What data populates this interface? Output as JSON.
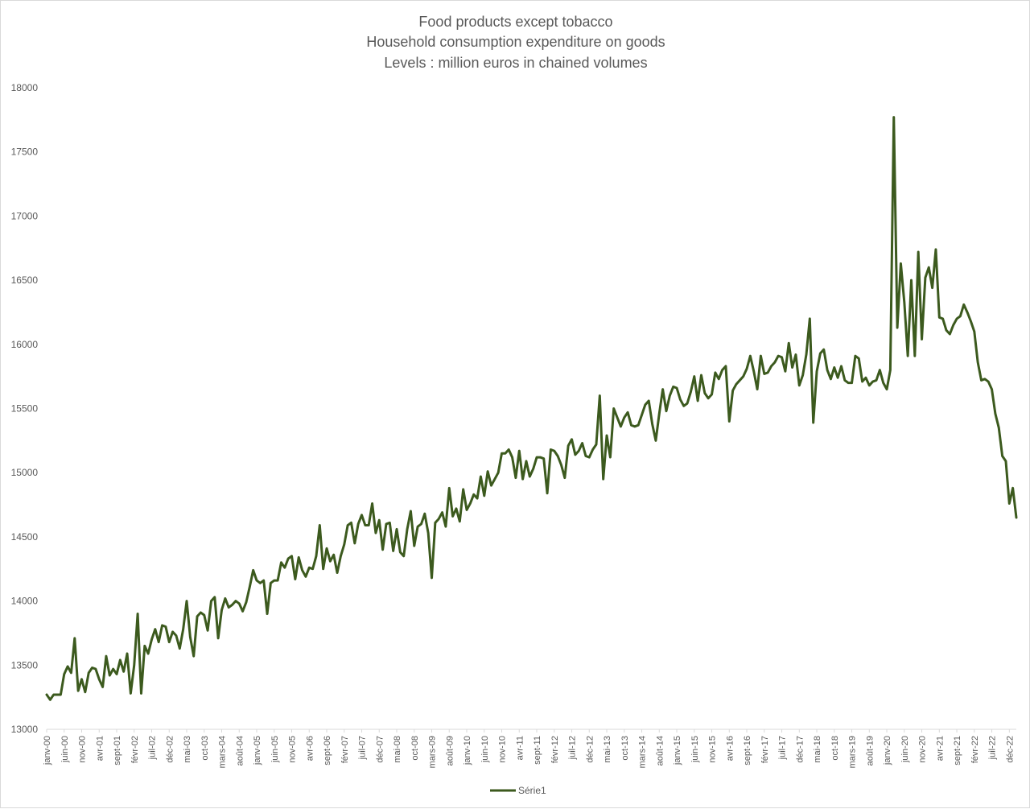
{
  "chart_data": {
    "type": "line",
    "title": [
      "Food products except tobacco",
      "Household consumption expenditure on goods",
      "Levels : million euros in chained volumes"
    ],
    "xlabel": "",
    "ylabel": "",
    "ylim": [
      13000,
      18000
    ],
    "yticks": [
      13000,
      13500,
      14000,
      14500,
      15000,
      15500,
      16000,
      16500,
      17000,
      17500,
      18000
    ],
    "grid": false,
    "legend_position": "bottom",
    "line_color": "#3c5a1e",
    "tick_labels": [
      "janv-00",
      "juin-00",
      "nov-00",
      "avr-01",
      "sept-01",
      "févr-02",
      "juil-02",
      "déc-02",
      "mai-03",
      "oct-03",
      "mars-04",
      "août-04",
      "janv-05",
      "juin-05",
      "nov-05",
      "avr-06",
      "sept-06",
      "févr-07",
      "juil-07",
      "déc-07",
      "mai-08",
      "oct-08",
      "mars-09",
      "août-09",
      "janv-10",
      "juin-10",
      "nov-10",
      "avr-11",
      "sept-11",
      "févr-12",
      "juil-12",
      "déc-12",
      "mai-13",
      "oct-13",
      "mars-14",
      "août-14",
      "janv-15",
      "juin-15",
      "nov-15",
      "avr-16",
      "sept-16",
      "févr-17",
      "juil-17",
      "déc-17",
      "mai-18",
      "oct-18",
      "mars-19",
      "août-19",
      "janv-20",
      "juin-20",
      "nov-20",
      "avr-21",
      "sept-21",
      "févr-22",
      "juil-22",
      "déc-22"
    ],
    "series": [
      {
        "name": "Série1",
        "values": [
          13270,
          13230,
          13270,
          13270,
          13270,
          13430,
          13490,
          13440,
          13710,
          13300,
          13390,
          13290,
          13440,
          13480,
          13470,
          13390,
          13330,
          13570,
          13420,
          13470,
          13430,
          13540,
          13450,
          13590,
          13280,
          13500,
          13900,
          13280,
          13650,
          13590,
          13700,
          13780,
          13680,
          13810,
          13800,
          13680,
          13760,
          13730,
          13630,
          13780,
          14000,
          13720,
          13570,
          13880,
          13910,
          13890,
          13770,
          14000,
          14030,
          13710,
          13930,
          14020,
          13950,
          13970,
          14000,
          13980,
          13920,
          13990,
          14110,
          14240,
          14160,
          14140,
          14160,
          13900,
          14140,
          14160,
          14160,
          14300,
          14260,
          14330,
          14350,
          14170,
          14340,
          14240,
          14190,
          14260,
          14250,
          14350,
          14590,
          14250,
          14410,
          14310,
          14360,
          14220,
          14350,
          14440,
          14590,
          14610,
          14450,
          14600,
          14670,
          14590,
          14590,
          14760,
          14530,
          14630,
          14400,
          14600,
          14610,
          14390,
          14560,
          14380,
          14350,
          14560,
          14700,
          14430,
          14580,
          14600,
          14680,
          14530,
          14180,
          14610,
          14640,
          14690,
          14580,
          14880,
          14660,
          14720,
          14620,
          14870,
          14710,
          14760,
          14830,
          14800,
          14970,
          14820,
          15010,
          14900,
          14950,
          15000,
          15150,
          15150,
          15180,
          15120,
          14960,
          15170,
          14950,
          15090,
          14970,
          15030,
          15120,
          15120,
          15110,
          14840,
          15180,
          15170,
          15130,
          15060,
          14960,
          15210,
          15260,
          15140,
          15170,
          15230,
          15130,
          15120,
          15180,
          15220,
          15600,
          14950,
          15290,
          15120,
          15500,
          15430,
          15360,
          15430,
          15470,
          15370,
          15360,
          15370,
          15450,
          15530,
          15560,
          15380,
          15250,
          15460,
          15650,
          15480,
          15600,
          15670,
          15660,
          15570,
          15520,
          15540,
          15630,
          15750,
          15560,
          15760,
          15620,
          15580,
          15610,
          15780,
          15730,
          15800,
          15830,
          15400,
          15640,
          15690,
          15720,
          15750,
          15810,
          15910,
          15790,
          15650,
          15910,
          15770,
          15780,
          15830,
          15860,
          15910,
          15900,
          15790,
          16010,
          15820,
          15920,
          15680,
          15760,
          15920,
          16200,
          15390,
          15790,
          15930,
          15960,
          15800,
          15730,
          15820,
          15740,
          15830,
          15720,
          15700,
          15700,
          15910,
          15890,
          15710,
          15740,
          15680,
          15710,
          15720,
          15800,
          15700,
          15650,
          15800,
          17770,
          16130,
          16630,
          16330,
          15910,
          16500,
          15910,
          16720,
          16040,
          16520,
          16600,
          16440,
          16740,
          16210,
          16200,
          16110,
          16080,
          16150,
          16200,
          16220,
          16310,
          16250,
          16180,
          16100,
          15860,
          15720,
          15730,
          15710,
          15650,
          15460,
          15350,
          15130,
          15090,
          14760,
          14880,
          14650
        ]
      }
    ]
  }
}
